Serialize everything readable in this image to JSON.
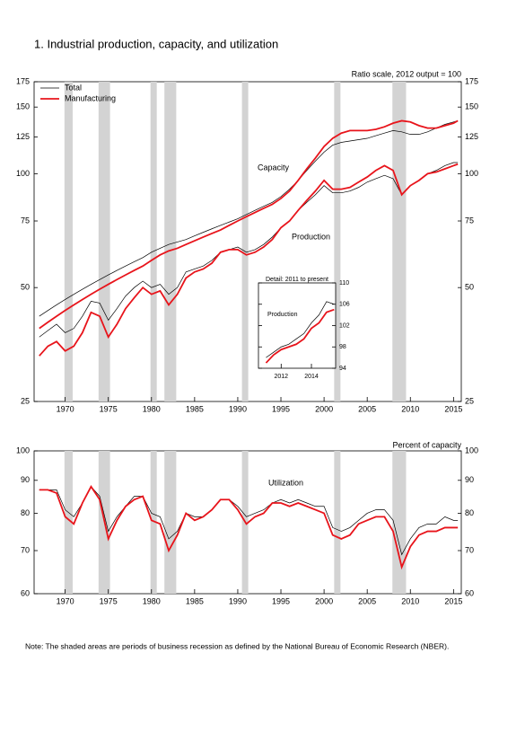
{
  "title": "1.  Industrial production, capacity, and utilization",
  "note": "Note: The shaded areas are periods of business recession as defined by the National Bureau of Economic Research (NBER).",
  "recessions": [
    [
      1969.92,
      1970.87
    ],
    [
      1973.87,
      1975.2
    ],
    [
      1980.0,
      1980.5
    ],
    [
      1981.5,
      1982.87
    ],
    [
      1990.5,
      1991.2
    ],
    [
      2001.2,
      2001.87
    ],
    [
      2007.92,
      2009.5
    ]
  ],
  "chart_data": [
    {
      "type": "line",
      "log_scale": true,
      "annotations": [
        "Ratio scale, 2012 output = 100",
        "Capacity",
        "Production"
      ],
      "xlim": [
        1966.4,
        2015.9
      ],
      "xticks": [
        1970,
        1975,
        1980,
        1985,
        1990,
        1995,
        2000,
        2005,
        2010,
        2015
      ],
      "ylim": [
        25,
        175
      ],
      "yticks": [
        25,
        50,
        75,
        100,
        125,
        150,
        175
      ],
      "x": [
        1967,
        1968,
        1969,
        1970,
        1971,
        1972,
        1973,
        1974,
        1975,
        1976,
        1977,
        1978,
        1979,
        1980,
        1981,
        1982,
        1983,
        1984,
        1985,
        1986,
        1987,
        1988,
        1989,
        1990,
        1991,
        1992,
        1993,
        1994,
        1995,
        1996,
        1997,
        1998,
        1999,
        2000,
        2001,
        2002,
        2003,
        2004,
        2005,
        2006,
        2007,
        2008,
        2009,
        2010,
        2011,
        2012,
        2013,
        2014,
        2015,
        2015.5
      ],
      "series": [
        {
          "name": "Total",
          "color": "#000000",
          "capacity": [
            42,
            43.5,
            45,
            46.5,
            48,
            49.5,
            51,
            52.5,
            54,
            55.5,
            57,
            58.5,
            60,
            62,
            63.5,
            65,
            66,
            67,
            68.5,
            70,
            71.5,
            73,
            74.5,
            76,
            78,
            80,
            82,
            84,
            87,
            91,
            96,
            102,
            108,
            114,
            119,
            121,
            122,
            123,
            124,
            126,
            128,
            130,
            129,
            127,
            127,
            129,
            132,
            135,
            137,
            138
          ],
          "production": [
            37,
            38.5,
            40,
            38,
            39,
            42,
            46,
            45.5,
            41,
            44,
            47.5,
            50,
            52,
            50,
            51,
            48,
            50,
            55,
            56,
            57,
            59,
            62,
            63,
            64,
            62,
            63,
            65,
            68,
            72,
            75,
            80,
            84,
            88,
            93,
            89,
            89,
            90,
            92,
            95,
            97,
            99,
            97,
            88,
            93,
            96,
            100,
            102,
            105,
            107,
            107
          ]
        },
        {
          "name": "Manufacturing",
          "color": "#e8141b",
          "capacity": [
            39,
            40.5,
            42,
            43.5,
            45,
            46.5,
            48,
            49.5,
            51,
            52.5,
            54,
            55.5,
            57,
            59,
            61,
            62.5,
            63.5,
            65,
            66.5,
            68,
            69.5,
            71,
            73,
            75,
            77,
            79,
            81,
            83,
            86,
            90,
            96,
            103,
            110,
            118,
            124,
            128,
            130,
            130,
            130,
            131,
            133,
            136,
            138,
            137,
            134,
            132,
            132,
            134,
            136,
            138
          ],
          "production": [
            33,
            35,
            36,
            34,
            35,
            38,
            43,
            42,
            37,
            40,
            44,
            47,
            50,
            48,
            49,
            45,
            48,
            53,
            55,
            56,
            58,
            62,
            63,
            63,
            61,
            62,
            64,
            67,
            72,
            75,
            80,
            85,
            90,
            96,
            91,
            91,
            92,
            95,
            98,
            102,
            105,
            102,
            88,
            93,
            96,
            100,
            101,
            103,
            105,
            106
          ]
        }
      ]
    },
    {
      "type": "line",
      "title": "Detail: 2011 to present",
      "annotations": [
        "Production"
      ],
      "xlim": [
        2010.5,
        2015.6
      ],
      "xticks": [
        2012,
        2014
      ],
      "ylim": [
        94,
        110
      ],
      "yticks": [
        94,
        98,
        102,
        106,
        110
      ],
      "x": [
        2011,
        2011.5,
        2012,
        2012.5,
        2013,
        2013.5,
        2014,
        2014.5,
        2015,
        2015.5
      ],
      "series": [
        {
          "color": "#000000",
          "values": [
            96,
            97,
            98,
            98.5,
            99.5,
            100.5,
            102.5,
            104,
            106.5,
            106
          ]
        },
        {
          "color": "#e8141b",
          "values": [
            95,
            96.5,
            97.5,
            98,
            98.5,
            99.5,
            101.5,
            102.5,
            104.5,
            105
          ]
        }
      ]
    },
    {
      "type": "line",
      "log_scale": true,
      "annotations": [
        "Percent of capacity",
        "Utilization"
      ],
      "xlim": [
        1966.4,
        2015.9
      ],
      "xticks": [
        1970,
        1975,
        1980,
        1985,
        1990,
        1995,
        2000,
        2005,
        2010,
        2015
      ],
      "ylim": [
        60,
        100
      ],
      "yticks": [
        60,
        70,
        80,
        90,
        100
      ],
      "x": [
        1967,
        1968,
        1969,
        1970,
        1971,
        1972,
        1973,
        1974,
        1975,
        1976,
        1977,
        1978,
        1979,
        1980,
        1981,
        1982,
        1983,
        1984,
        1985,
        1986,
        1987,
        1988,
        1989,
        1990,
        1991,
        1992,
        1993,
        1994,
        1995,
        1996,
        1997,
        1998,
        1999,
        2000,
        2001,
        2002,
        2003,
        2004,
        2005,
        2006,
        2007,
        2008,
        2009,
        2010,
        2011,
        2012,
        2013,
        2014,
        2015,
        2015.5
      ],
      "series": [
        {
          "color": "#000000",
          "values": [
            87,
            87,
            87,
            81,
            79,
            83,
            88,
            85,
            75,
            79,
            82,
            85,
            85,
            80,
            79,
            73,
            75,
            80,
            79,
            79,
            81,
            84,
            84,
            82,
            79,
            80,
            81,
            83,
            84,
            83,
            84,
            83,
            82,
            82,
            76,
            75,
            76,
            78,
            80,
            81,
            81,
            78,
            69,
            73,
            76,
            77,
            77,
            79,
            78,
            78
          ]
        },
        {
          "color": "#e8141b",
          "values": [
            87,
            87,
            86,
            79,
            77,
            83,
            88,
            84,
            73,
            78,
            82,
            84,
            85,
            78,
            77,
            70,
            74,
            80,
            78,
            79,
            81,
            84,
            84,
            81,
            77,
            79,
            80,
            83,
            83,
            82,
            83,
            82,
            81,
            80,
            74,
            73,
            74,
            77,
            78,
            79,
            79,
            75,
            66,
            71,
            74,
            75,
            75,
            76,
            76,
            76
          ]
        }
      ]
    }
  ]
}
